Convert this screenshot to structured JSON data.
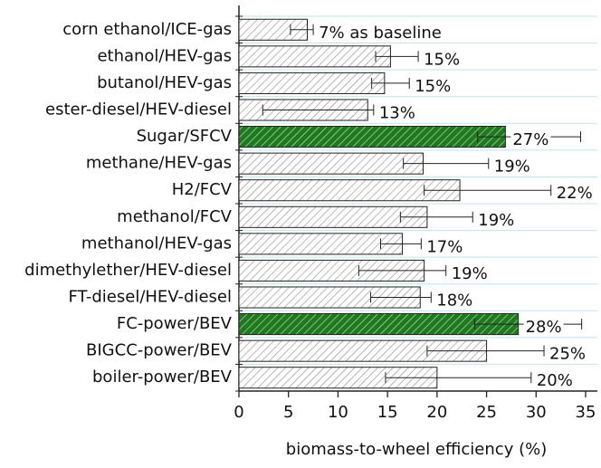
{
  "chart_data": {
    "type": "hbar",
    "x_label": "biomass-to-wheel efficiency (%)",
    "categories": [
      "corn ethanol/ICE-gas",
      "ethanol/HEV-gas",
      "butanol/HEV-gas",
      "ester-diesel/HEV-diesel",
      "Sugar/SFCV",
      "methane/HEV-gas",
      "H2/FCV",
      "methanol/FCV",
      "methanol/HEV-gas",
      "dimethylether/HEV-diesel",
      "FT-diesel/HEV-diesel",
      "FC-power/BEV",
      "BIGCC-power/BEV",
      "boiler-power/BEV"
    ],
    "values": [
      6.9,
      15.3,
      14.7,
      13.0,
      26.9,
      18.6,
      22.3,
      19.0,
      16.5,
      18.7,
      18.3,
      28.2,
      25.0,
      20.0
    ],
    "value_labels": [
      "7% as baseline",
      "15%",
      "15%",
      "13%",
      "27%",
      "19%",
      "22%",
      "19%",
      "17%",
      "19%",
      "18%",
      "28%",
      "25%",
      "20%"
    ],
    "err_low": [
      5.2,
      13.8,
      13.4,
      2.4,
      24.1,
      16.6,
      18.7,
      16.3,
      14.3,
      12.1,
      13.3,
      23.8,
      19.0,
      14.8
    ],
    "err_high": [
      7.5,
      18.1,
      17.2,
      13.6,
      34.5,
      25.2,
      31.5,
      23.6,
      18.4,
      20.9,
      19.4,
      34.6,
      30.8,
      29.5
    ],
    "colors": [
      "#ffffff",
      "#ffffff",
      "#ffffff",
      "#ffffff",
      "#1f7a1f",
      "#ffffff",
      "#ffffff",
      "#ffffff",
      "#ffffff",
      "#ffffff",
      "#ffffff",
      "#1f7a1f",
      "#ffffff",
      "#ffffff"
    ],
    "xlim": [
      0,
      35
    ],
    "xticks": [
      0,
      5,
      10,
      15,
      20,
      25,
      30,
      35
    ],
    "grid": true
  }
}
